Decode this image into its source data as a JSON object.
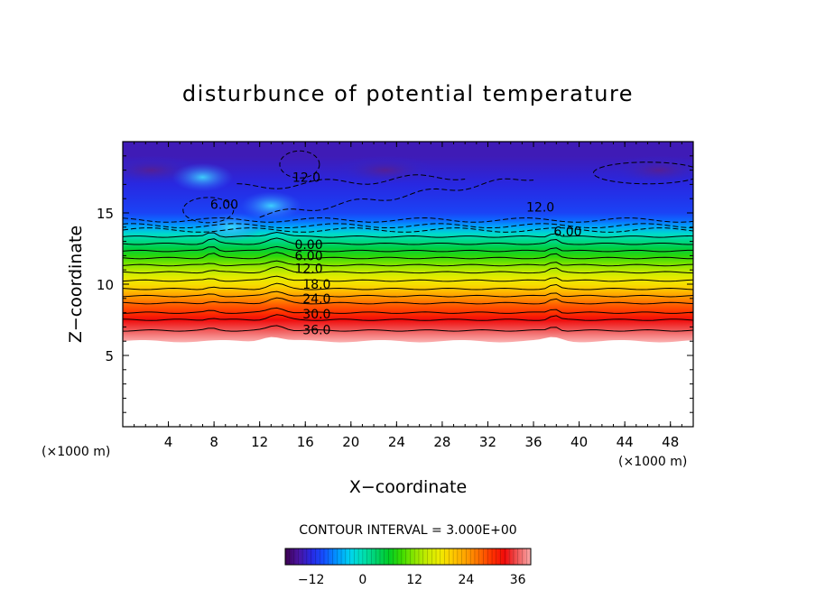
{
  "chart_data": {
    "type": "heatmap",
    "title": "disturbunce of potential temperature",
    "xlabel": "X−coordinate",
    "ylabel": "Z−coordinate",
    "x_unit_left": "(×1000 m)",
    "x_unit_right": "(×1000 m)",
    "xlim": [
      0,
      50
    ],
    "ylim": [
      0,
      20
    ],
    "x_ticks": [
      "4",
      "8",
      "12",
      "16",
      "20",
      "24",
      "28",
      "32",
      "36",
      "40",
      "44",
      "48"
    ],
    "y_ticks": [
      "5",
      "10",
      "15"
    ],
    "contour_interval_text": "CONTOUR INTERVAL = 3.000E+00",
    "colorbar_ticks": [
      "−12",
      "0",
      "12",
      "24",
      "36"
    ],
    "colorbar_range": [
      -18,
      39
    ],
    "contour_labels": [
      {
        "text": "0.00",
        "x": 16.3,
        "z": 12.8
      },
      {
        "text": "6.00",
        "x": 16.3,
        "z": 12.0
      },
      {
        "text": "12.0",
        "x": 16.3,
        "z": 11.1
      },
      {
        "text": "18.0",
        "x": 17.0,
        "z": 10.0
      },
      {
        "text": "24.0",
        "x": 17.0,
        "z": 9.0
      },
      {
        "text": "30.0",
        "x": 17.0,
        "z": 7.9
      },
      {
        "text": "36.0",
        "x": 17.0,
        "z": 6.8
      },
      {
        "text": "6.00",
        "x": 39.0,
        "z": 13.7
      },
      {
        "text": "12.0",
        "x": 36.6,
        "z": 15.4
      },
      {
        "text": "12.0",
        "x": 16.1,
        "z": 17.5
      },
      {
        "text": "6.00",
        "x": 8.9,
        "z": 15.6
      }
    ],
    "profile": [
      {
        "z": 6.0,
        "v": 39
      },
      {
        "z": 6.5,
        "v": 37
      },
      {
        "z": 7.0,
        "v": 35
      },
      {
        "z": 7.5,
        "v": 33
      },
      {
        "z": 8.0,
        "v": 30
      },
      {
        "z": 8.5,
        "v": 28
      },
      {
        "z": 9.0,
        "v": 25
      },
      {
        "z": 9.5,
        "v": 22
      },
      {
        "z": 10.0,
        "v": 19
      },
      {
        "z": 10.5,
        "v": 17
      },
      {
        "z": 11.0,
        "v": 14
      },
      {
        "z": 11.5,
        "v": 11
      },
      {
        "z": 12.0,
        "v": 8
      },
      {
        "z": 12.5,
        "v": 5
      },
      {
        "z": 13.0,
        "v": 2
      },
      {
        "z": 13.5,
        "v": -1
      },
      {
        "z": 14.0,
        "v": -5
      },
      {
        "z": 14.5,
        "v": -8
      },
      {
        "z": 15.0,
        "v": -10
      },
      {
        "z": 16.0,
        "v": -11
      },
      {
        "z": 17.0,
        "v": -12
      },
      {
        "z": 18.0,
        "v": -13
      },
      {
        "z": 19.0,
        "v": -14
      },
      {
        "z": 20.0,
        "v": -14
      }
    ],
    "cold_anomalies": [
      {
        "x": 2.5,
        "z": 18.0,
        "v": -16
      },
      {
        "x": 23.0,
        "z": 18.0,
        "v": -16
      },
      {
        "x": 47.0,
        "z": 18.0,
        "v": -17
      }
    ],
    "warm_anomalies": [
      {
        "x": 9.5,
        "z": 14.0,
        "v": -2
      },
      {
        "x": 7.0,
        "z": 17.5,
        "v": -6
      },
      {
        "x": 13.0,
        "z": 15.5,
        "v": -5
      }
    ]
  }
}
